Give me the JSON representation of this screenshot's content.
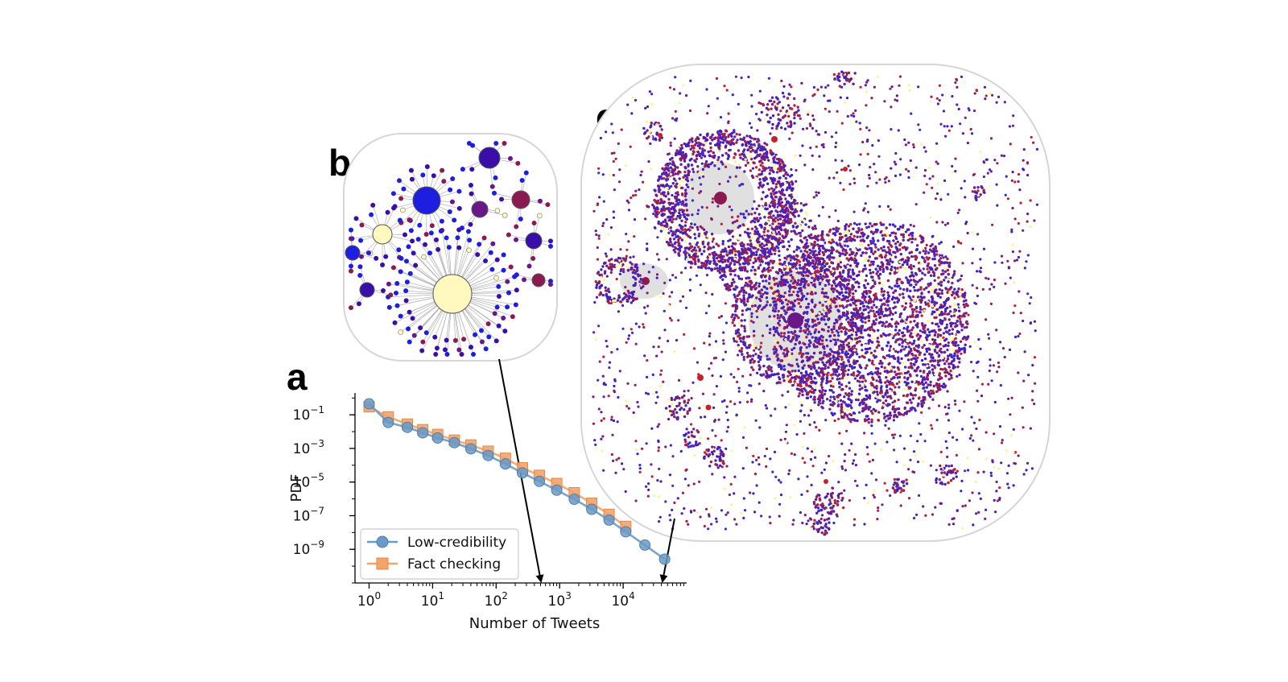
{
  "panels": {
    "a": "a",
    "b": "b",
    "c": "c"
  },
  "chart_data": {
    "type": "line",
    "title": "",
    "xlabel": "Number of Tweets",
    "ylabel": "PDF",
    "xscale": "log",
    "yscale": "log",
    "xlim": [
      0.6,
      100000
    ],
    "ylim": [
      1e-11,
      2
    ],
    "x_ticks": [
      {
        "value": 1,
        "base": "10",
        "exp": "0"
      },
      {
        "value": 10,
        "base": "10",
        "exp": "1"
      },
      {
        "value": 100,
        "base": "10",
        "exp": "2"
      },
      {
        "value": 1000,
        "base": "10",
        "exp": "3"
      },
      {
        "value": 10000,
        "base": "10",
        "exp": "4"
      }
    ],
    "y_ticks": [
      {
        "value": 0.1,
        "base": "10",
        "exp": "−1"
      },
      {
        "value": 0.001,
        "base": "10",
        "exp": "−3"
      },
      {
        "value": 1e-05,
        "base": "10",
        "exp": "−5"
      },
      {
        "value": 1e-07,
        "base": "10",
        "exp": "−7"
      },
      {
        "value": 1e-09,
        "base": "10",
        "exp": "−9"
      }
    ],
    "legend_position": "lower-left",
    "series": [
      {
        "name": "Low-credibility",
        "marker": "circle",
        "color": "#6a9ac8",
        "x": [
          1,
          2,
          4,
          7,
          12,
          22,
          40,
          75,
          140,
          260,
          480,
          900,
          1700,
          3200,
          6000,
          11000,
          22000,
          45000
        ],
        "y": [
          0.45,
          0.035,
          0.018,
          0.0085,
          0.0042,
          0.0022,
          0.00095,
          0.00038,
          0.00012,
          3.5e-05,
          1.1e-05,
          3.3e-06,
          9.5e-07,
          2.4e-07,
          5.5e-08,
          1.1e-08,
          1.8e-09,
          2.6e-10
        ]
      },
      {
        "name": "Fact checking",
        "marker": "square",
        "color": "#f3a469",
        "x": [
          1,
          2,
          4,
          7,
          12,
          22,
          40,
          75,
          140,
          260,
          480,
          900,
          1700,
          3200,
          6000,
          11000
        ],
        "y": [
          0.3,
          0.075,
          0.028,
          0.013,
          0.0068,
          0.0031,
          0.0016,
          0.00068,
          0.00026,
          7e-05,
          2.5e-05,
          8.2e-06,
          2.3e-06,
          5.5e-07,
          1.2e-07,
          2.3e-08
        ]
      }
    ]
  },
  "colors": {
    "network_blue": "#1e1ee0",
    "network_indigo": "#3a0ea8",
    "network_purple": "#6a1888",
    "network_maroon": "#8a1a50",
    "network_red": "#c8202a",
    "network_yellow": "#fff9c0",
    "bubble_outline": "#d6d6d6",
    "edge": "#b3b3b3"
  }
}
